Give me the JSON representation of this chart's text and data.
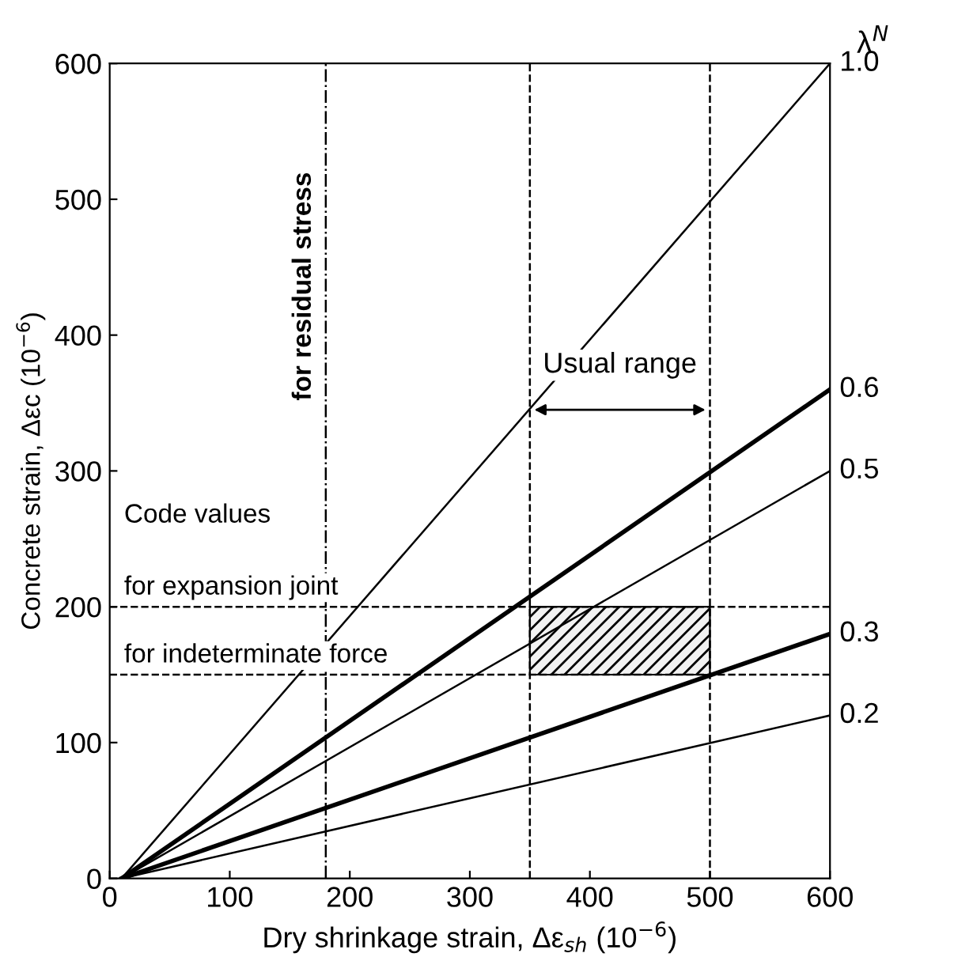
{
  "chart_data": {
    "type": "line",
    "xlabel": "Dry shrinkage strain, Δε$_{sh}$ (10$^{−6}$)",
    "ylabel": "Concrete strain, Δεc (10$^{−6}$)",
    "y2label": "λ$^{N}$",
    "xlim": [
      0,
      600
    ],
    "ylim": [
      0,
      600
    ],
    "xticks": [
      0,
      100,
      200,
      300,
      400,
      500,
      600
    ],
    "yticks": [
      0,
      100,
      200,
      300,
      400,
      500,
      600
    ],
    "grid": false,
    "marker": "none",
    "line_style": "solid",
    "x": [
      10,
      600
    ],
    "series": [
      {
        "name": "1.0",
        "color": "#000000",
        "values": [
          0,
          600
        ]
      },
      {
        "name": "0.6",
        "color": "#000000",
        "values": [
          0,
          360
        ]
      },
      {
        "name": "0.5",
        "color": "#000000",
        "values": [
          0,
          300
        ]
      },
      {
        "name": "0.3",
        "color": "#000000",
        "values": [
          0,
          180
        ]
      },
      {
        "name": "0.2",
        "color": "#000000",
        "values": [
          0,
          120
        ]
      },
      {
        "type": "bar",
        "color": "#000000",
        "x": [
          425
        ],
        "values": [
          50
        ],
        "base": [
          150
        ]
      }
    ],
    "ref_lines": [
      {
        "axis": "x",
        "value": 180,
        "label": "for residual stress",
        "line_style": "dashdot"
      },
      {
        "axis": "y",
        "value": 200,
        "label": "for expansion joint",
        "line_style": "dashed"
      },
      {
        "axis": "y",
        "value": 150,
        "label": "for indeterminate force",
        "line_style": "dashed"
      },
      {
        "axis": "x",
        "value": 350,
        "line_style": "dashed"
      },
      {
        "axis": "x",
        "value": 500,
        "line_style": "dashed"
      }
    ],
    "annotations": [
      "Code values",
      "Usual range"
    ]
  }
}
